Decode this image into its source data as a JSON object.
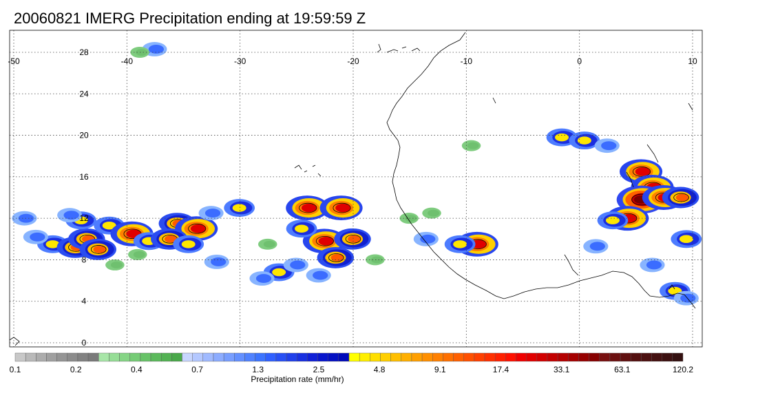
{
  "title": "20060821 IMERG Precipitation ending at 19:59:59 Z",
  "map": {
    "lon_range": [
      -50,
      10
    ],
    "lat_range": [
      -1,
      30
    ],
    "lon_ticks": [
      {
        "value": -50,
        "label": "-50"
      },
      {
        "value": -40,
        "label": "-40"
      },
      {
        "value": -30,
        "label": "-30"
      },
      {
        "value": -20,
        "label": "-20"
      },
      {
        "value": -10,
        "label": "-10"
      },
      {
        "value": 0,
        "label": "0"
      },
      {
        "value": 10,
        "label": "10"
      }
    ],
    "lat_ticks": [
      {
        "value": 0,
        "label": "0"
      },
      {
        "value": 4,
        "label": "4"
      },
      {
        "value": 8,
        "label": "8"
      },
      {
        "value": 12,
        "label": "12"
      },
      {
        "value": 16,
        "label": "16"
      },
      {
        "value": 20,
        "label": "20"
      },
      {
        "value": 24,
        "label": "24"
      },
      {
        "value": 28,
        "label": "28"
      }
    ],
    "grid": "dotted",
    "coastline_color": "#000000",
    "precip_cells": [
      {
        "lon": -37.5,
        "lat": 28.3,
        "level": 2
      },
      {
        "lon": -38.8,
        "lat": 28.0,
        "level": 1
      },
      {
        "lon": -49.0,
        "lat": 12.0,
        "level": 2
      },
      {
        "lon": -46.5,
        "lat": 9.5,
        "level": 3
      },
      {
        "lon": -44.5,
        "lat": 9.2,
        "level": 4
      },
      {
        "lon": -43.5,
        "lat": 10.0,
        "level": 4
      },
      {
        "lon": -42.5,
        "lat": 9.0,
        "level": 4
      },
      {
        "lon": -44.0,
        "lat": 11.8,
        "level": 3
      },
      {
        "lon": -41.5,
        "lat": 11.3,
        "level": 3
      },
      {
        "lon": -39.5,
        "lat": 10.5,
        "level": 5
      },
      {
        "lon": -38.0,
        "lat": 9.8,
        "level": 3
      },
      {
        "lon": -35.5,
        "lat": 11.5,
        "level": 4
      },
      {
        "lon": -33.8,
        "lat": 11.0,
        "level": 5
      },
      {
        "lon": -36.2,
        "lat": 10.0,
        "level": 4
      },
      {
        "lon": -34.5,
        "lat": 9.5,
        "level": 3
      },
      {
        "lon": -30.0,
        "lat": 13.0,
        "level": 3
      },
      {
        "lon": -32.5,
        "lat": 12.5,
        "level": 2
      },
      {
        "lon": -39.0,
        "lat": 8.5,
        "level": 1
      },
      {
        "lon": -41.0,
        "lat": 7.5,
        "level": 1
      },
      {
        "lon": -32.0,
        "lat": 7.8,
        "level": 2
      },
      {
        "lon": -24.0,
        "lat": 13.0,
        "level": 5
      },
      {
        "lon": -21.0,
        "lat": 13.0,
        "level": 5
      },
      {
        "lon": -22.5,
        "lat": 9.8,
        "level": 5
      },
      {
        "lon": -20.0,
        "lat": 10.0,
        "level": 4
      },
      {
        "lon": -21.5,
        "lat": 8.2,
        "level": 4
      },
      {
        "lon": -24.5,
        "lat": 11.0,
        "level": 3
      },
      {
        "lon": -26.5,
        "lat": 6.8,
        "level": 3
      },
      {
        "lon": -25.0,
        "lat": 7.5,
        "level": 2
      },
      {
        "lon": -28.0,
        "lat": 6.2,
        "level": 2
      },
      {
        "lon": -23.0,
        "lat": 6.5,
        "level": 2
      },
      {
        "lon": -18.0,
        "lat": 8.0,
        "level": 1
      },
      {
        "lon": -15.0,
        "lat": 12.0,
        "level": 1
      },
      {
        "lon": -13.5,
        "lat": 10.0,
        "level": 2
      },
      {
        "lon": -9.0,
        "lat": 9.5,
        "level": 5
      },
      {
        "lon": -10.5,
        "lat": 9.5,
        "level": 3
      },
      {
        "lon": -13.0,
        "lat": 12.5,
        "level": 1
      },
      {
        "lon": -1.5,
        "lat": 19.8,
        "level": 3
      },
      {
        "lon": 0.5,
        "lat": 19.5,
        "level": 3
      },
      {
        "lon": 2.5,
        "lat": 19.0,
        "level": 2
      },
      {
        "lon": 5.5,
        "lat": 16.5,
        "level": 5
      },
      {
        "lon": 6.5,
        "lat": 15.0,
        "level": 5
      },
      {
        "lon": 5.5,
        "lat": 13.8,
        "level": 6
      },
      {
        "lon": 7.5,
        "lat": 14.0,
        "level": 5
      },
      {
        "lon": 9.0,
        "lat": 14.0,
        "level": 4
      },
      {
        "lon": 4.3,
        "lat": 12.0,
        "level": 5
      },
      {
        "lon": 3.0,
        "lat": 11.8,
        "level": 3
      },
      {
        "lon": 9.5,
        "lat": 10.0,
        "level": 3
      },
      {
        "lon": 6.5,
        "lat": 7.5,
        "level": 2
      },
      {
        "lon": 8.5,
        "lat": 5.0,
        "level": 3
      },
      {
        "lon": 9.5,
        "lat": 4.3,
        "level": 2
      },
      {
        "lon": 1.5,
        "lat": 9.3,
        "level": 2
      },
      {
        "lon": -9.5,
        "lat": 19.0,
        "level": 1
      },
      {
        "lon": -48.0,
        "lat": 10.2,
        "level": 2
      },
      {
        "lon": -45.0,
        "lat": 12.3,
        "level": 2
      },
      {
        "lon": -27.5,
        "lat": 9.5,
        "level": 1
      }
    ]
  },
  "colorbar": {
    "colors": [
      "#c8c8c8",
      "#b9b9b9",
      "#acacac",
      "#a0a0a0",
      "#959595",
      "#8c8c8c",
      "#828282",
      "#7a7a7a",
      "#a8e6a8",
      "#96de96",
      "#86d586",
      "#76cc76",
      "#68c368",
      "#5cba5c",
      "#53b253",
      "#4aa94a",
      "#c8d6ff",
      "#b4c8ff",
      "#a0baff",
      "#8cacff",
      "#789eff",
      "#6490ff",
      "#5082ff",
      "#3c74ff",
      "#3060ff",
      "#2850f5",
      "#2040eb",
      "#1830e1",
      "#1020d7",
      "#0816cd",
      "#0410c3",
      "#000ab9",
      "#ffff00",
      "#ffef00",
      "#ffdf00",
      "#ffcf00",
      "#ffbf00",
      "#ffaf00",
      "#ff9f00",
      "#ff8f00",
      "#ff8000",
      "#ff7000",
      "#ff6000",
      "#ff5000",
      "#ff4000",
      "#ff3000",
      "#ff2000",
      "#ff1000",
      "#f00000",
      "#e10000",
      "#d20000",
      "#c30000",
      "#b40000",
      "#a50000",
      "#960000",
      "#870000",
      "#781010",
      "#6c1010",
      "#601010",
      "#541010",
      "#4c1010",
      "#441010",
      "#3c1010",
      "#341010"
    ],
    "labels": [
      "0.1",
      "0.2",
      "0.4",
      "0.7",
      "1.3",
      "2.5",
      "4.8",
      "9.1",
      "17.4",
      "33.1",
      "63.1",
      "120.2"
    ],
    "title": "Precipitation rate (mm/hr)"
  }
}
